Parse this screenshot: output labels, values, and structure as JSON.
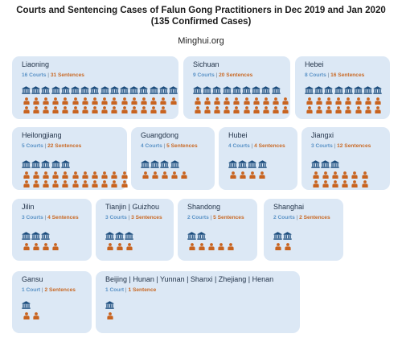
{
  "header": {
    "title_line1": "Courts and Sentencing Cases of Falun Gong Practitioners in Dec 2019 and Jan 2020",
    "title_line2": "(135 Confirmed Cases)",
    "source": "Minghui.org"
  },
  "colors": {
    "card_bg": "#dce8f5",
    "court_icon": "#1d4e7e",
    "person_icon": "#c8631f",
    "courts_text": "#5b93c7",
    "sentences_text": "#c96a26"
  },
  "chart_data": {
    "type": "table",
    "title": "Courts and Sentencing Cases of Falun Gong Practitioners in Dec 2019 and Jan 2020",
    "subtitle": "(135 Confirmed Cases)",
    "series": [
      {
        "key": "courts",
        "icon": "court-icon"
      },
      {
        "key": "sentences",
        "icon": "person-icon"
      }
    ],
    "regions": [
      {
        "name": "Liaoning",
        "courts": 16,
        "sentences": 31,
        "courts_label": "16 Courts",
        "sentences_label": "31 Sentences"
      },
      {
        "name": "Sichuan",
        "courts": 9,
        "sentences": 20,
        "courts_label": "9 Courts",
        "sentences_label": "20 Sentences"
      },
      {
        "name": "Hebei",
        "courts": 8,
        "sentences": 16,
        "courts_label": "8 Courts",
        "sentences_label": "16 Sentences"
      },
      {
        "name": "Heilongjiang",
        "courts": 5,
        "sentences": 22,
        "courts_label": "5 Courts",
        "sentences_label": "22 Sentences"
      },
      {
        "name": "Guangdong",
        "courts": 4,
        "sentences": 5,
        "courts_label": "4 Courts",
        "sentences_label": "5 Sentences"
      },
      {
        "name": "Hubei",
        "courts": 4,
        "sentences": 4,
        "courts_label": "4 Courts",
        "sentences_label": "4 Sentences"
      },
      {
        "name": "Jiangxi",
        "courts": 3,
        "sentences": 12,
        "courts_label": "3 Courts",
        "sentences_label": "12 Sentences"
      },
      {
        "name": "Jilin",
        "courts": 3,
        "sentences": 4,
        "courts_label": "3 Courts",
        "sentences_label": "4 Sentences"
      },
      {
        "name": "Tianjin | Guizhou",
        "courts": 3,
        "sentences": 3,
        "courts_label": "3 Courts",
        "sentences_label": "3 Sentences"
      },
      {
        "name": "Shandong",
        "courts": 2,
        "sentences": 5,
        "courts_label": "2 Courts",
        "sentences_label": "5 Sentences"
      },
      {
        "name": "Shanghai",
        "courts": 2,
        "sentences": 2,
        "courts_label": "2 Courts",
        "sentences_label": "2 Sentences"
      },
      {
        "name": "Gansu",
        "courts": 1,
        "sentences": 2,
        "courts_label": "1 Court",
        "sentences_label": "2 Sentences"
      },
      {
        "name": "Beijing | Hunan | Yunnan | Shanxi | Zhejiang | Henan",
        "courts": 1,
        "sentences": 1,
        "courts_label": "1 Court",
        "sentences_label": "1 Sentence"
      }
    ]
  }
}
